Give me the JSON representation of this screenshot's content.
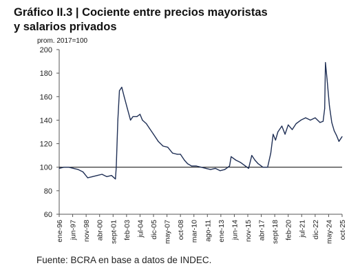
{
  "header": {
    "title_line1": "Gráfico II.3 | Cociente entre precios mayoristas",
    "title_line2": "y salarios privados",
    "unit_label": "prom. 2017=100"
  },
  "footer": {
    "source": "Fuente: BCRA en base a datos de INDEC."
  },
  "chart_data": {
    "type": "line",
    "title": "Gráfico II.3 | Cociente entre precios mayoristas y salarios privados",
    "subtitle": "prom. 2017=100",
    "ylim": [
      60,
      200
    ],
    "yticks": [
      60,
      80,
      100,
      120,
      140,
      160,
      180,
      200
    ],
    "xlim": [
      "1996-01",
      "2025-10"
    ],
    "xtick_labels": [
      "ene-96",
      "jun-97",
      "nov-98",
      "abr-00",
      "sept-01",
      "feb-03",
      "jul-04",
      "dic-05",
      "may-07",
      "oct-08",
      "mar-10",
      "ago-11",
      "ene-13",
      "jun-14",
      "nov-15",
      "abr-17",
      "sept-18",
      "feb-20",
      "jul-21",
      "dic-22",
      "may-24",
      "oct-25"
    ],
    "xtick_dates": [
      "1996-01",
      "1997-06",
      "1998-11",
      "2000-04",
      "2001-09",
      "2003-02",
      "2004-07",
      "2005-12",
      "2007-05",
      "2008-10",
      "2010-03",
      "2011-08",
      "2013-01",
      "2014-06",
      "2015-11",
      "2017-04",
      "2018-09",
      "2020-02",
      "2021-07",
      "2022-12",
      "2024-05",
      "2025-10"
    ],
    "reference_line": 100,
    "grid": false,
    "line_color": "#1f2f55",
    "series": [
      {
        "x": [
          "1996-01",
          "1996-07",
          "1997-01",
          "1997-07",
          "1998-01",
          "1998-07",
          "1999-01",
          "1999-07",
          "2000-01",
          "2000-07",
          "2001-01",
          "2001-07",
          "2001-12",
          "2002-01",
          "2002-03",
          "2002-05",
          "2002-08",
          "2002-11",
          "2003-03",
          "2003-07",
          "2003-10",
          "2004-03",
          "2004-07",
          "2004-10",
          "2005-03",
          "2005-07",
          "2005-12",
          "2006-06",
          "2006-12",
          "2007-06",
          "2007-12",
          "2008-06",
          "2008-10",
          "2009-03",
          "2009-07",
          "2009-12",
          "2010-06",
          "2010-12",
          "2011-06",
          "2011-12",
          "2012-06",
          "2012-12",
          "2013-06",
          "2013-12",
          "2014-02",
          "2014-08",
          "2015-02",
          "2015-08",
          "2015-12",
          "2016-04",
          "2016-08",
          "2016-12",
          "2017-06",
          "2017-12",
          "2018-04",
          "2018-07",
          "2018-10",
          "2019-01",
          "2019-06",
          "2019-10",
          "2020-02",
          "2020-07",
          "2020-12",
          "2021-06",
          "2021-12",
          "2022-06",
          "2022-12",
          "2023-06",
          "2023-10",
          "2023-12",
          "2024-01",
          "2024-03",
          "2024-06",
          "2024-09",
          "2024-12",
          "2025-03",
          "2025-06",
          "2025-10"
        ],
        "values": [
          99,
          100,
          100,
          99,
          98,
          96,
          91,
          92,
          93,
          94,
          92,
          93,
          90,
          100,
          140,
          165,
          168,
          160,
          150,
          140,
          143,
          143,
          145,
          140,
          137,
          133,
          128,
          122,
          118,
          117,
          112,
          111,
          111,
          106,
          103,
          101,
          101,
          100,
          99,
          98,
          99,
          97,
          98,
          101,
          109,
          106,
          104,
          101,
          99,
          110,
          106,
          103,
          100,
          100,
          112,
          128,
          123,
          130,
          135,
          128,
          136,
          132,
          137,
          140,
          142,
          140,
          142,
          138,
          139,
          150,
          189,
          175,
          152,
          138,
          131,
          127,
          122,
          126
        ]
      }
    ]
  }
}
